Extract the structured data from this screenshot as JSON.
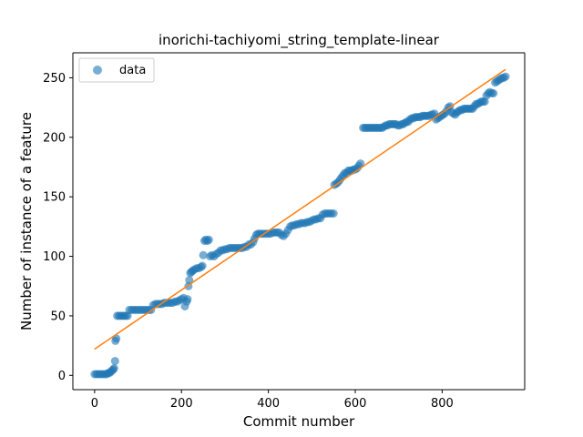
{
  "chart_data": {
    "type": "scatter",
    "title": "inorichi-tachiyomi_string_template-linear",
    "xlabel": "Commit number",
    "ylabel": "Number of instance of a feature",
    "xlim": [
      -50,
      990
    ],
    "ylim": [
      -12,
      271
    ],
    "x_ticks": [
      0,
      200,
      400,
      600,
      800
    ],
    "y_ticks": [
      0,
      50,
      100,
      150,
      200,
      250
    ],
    "grid": false,
    "legend_position": "top-left",
    "series": [
      {
        "name": "data",
        "kind": "scatter",
        "color": "#1f77b4",
        "opacity": 0.6,
        "points": [
          [
            0,
            1
          ],
          [
            4,
            1
          ],
          [
            8,
            1
          ],
          [
            12,
            1
          ],
          [
            16,
            1
          ],
          [
            20,
            1
          ],
          [
            24,
            1
          ],
          [
            28,
            1
          ],
          [
            31,
            2
          ],
          [
            34,
            2
          ],
          [
            37,
            3
          ],
          [
            40,
            4
          ],
          [
            43,
            5
          ],
          [
            45,
            6
          ],
          [
            47,
            12
          ],
          [
            48,
            29
          ],
          [
            50,
            31
          ],
          [
            52,
            50
          ],
          [
            56,
            50
          ],
          [
            60,
            50
          ],
          [
            64,
            50
          ],
          [
            68,
            50
          ],
          [
            72,
            50
          ],
          [
            76,
            50
          ],
          [
            80,
            55
          ],
          [
            85,
            55
          ],
          [
            90,
            55
          ],
          [
            95,
            55
          ],
          [
            100,
            55
          ],
          [
            105,
            55
          ],
          [
            110,
            55
          ],
          [
            115,
            55
          ],
          [
            120,
            55
          ],
          [
            125,
            55
          ],
          [
            130,
            55
          ],
          [
            135,
            59
          ],
          [
            140,
            60
          ],
          [
            145,
            60
          ],
          [
            150,
            60
          ],
          [
            155,
            60
          ],
          [
            160,
            61
          ],
          [
            165,
            61
          ],
          [
            170,
            61
          ],
          [
            175,
            61
          ],
          [
            180,
            61
          ],
          [
            185,
            62
          ],
          [
            190,
            62
          ],
          [
            195,
            63
          ],
          [
            200,
            64
          ],
          [
            205,
            65
          ],
          [
            208,
            58
          ],
          [
            212,
            62
          ],
          [
            214,
            64
          ],
          [
            216,
            75
          ],
          [
            218,
            80
          ],
          [
            220,
            86
          ],
          [
            223,
            87
          ],
          [
            226,
            88
          ],
          [
            230,
            89
          ],
          [
            235,
            90
          ],
          [
            240,
            90
          ],
          [
            245,
            91
          ],
          [
            248,
            92
          ],
          [
            250,
            101
          ],
          [
            253,
            113
          ],
          [
            256,
            114
          ],
          [
            260,
            113
          ],
          [
            263,
            114
          ],
          [
            266,
            100
          ],
          [
            270,
            101
          ],
          [
            275,
            100
          ],
          [
            280,
            102
          ],
          [
            285,
            103
          ],
          [
            290,
            105
          ],
          [
            295,
            105
          ],
          [
            300,
            106
          ],
          [
            305,
            106
          ],
          [
            310,
            107
          ],
          [
            315,
            107
          ],
          [
            320,
            107
          ],
          [
            325,
            107
          ],
          [
            330,
            107
          ],
          [
            335,
            107
          ],
          [
            340,
            107
          ],
          [
            345,
            108
          ],
          [
            350,
            108
          ],
          [
            355,
            110
          ],
          [
            360,
            110
          ],
          [
            365,
            112
          ],
          [
            368,
            115
          ],
          [
            372,
            118
          ],
          [
            376,
            119
          ],
          [
            380,
            119
          ],
          [
            385,
            119
          ],
          [
            390,
            119
          ],
          [
            395,
            119
          ],
          [
            400,
            119
          ],
          [
            405,
            119
          ],
          [
            410,
            120
          ],
          [
            415,
            120
          ],
          [
            420,
            120
          ],
          [
            425,
            120
          ],
          [
            430,
            118
          ],
          [
            435,
            117
          ],
          [
            440,
            119
          ],
          [
            445,
            122
          ],
          [
            450,
            125
          ],
          [
            455,
            126
          ],
          [
            460,
            126
          ],
          [
            465,
            127
          ],
          [
            470,
            127
          ],
          [
            475,
            128
          ],
          [
            480,
            128
          ],
          [
            485,
            128
          ],
          [
            490,
            129
          ],
          [
            495,
            129
          ],
          [
            500,
            130
          ],
          [
            505,
            131
          ],
          [
            510,
            131
          ],
          [
            515,
            132
          ],
          [
            520,
            132
          ],
          [
            525,
            135
          ],
          [
            530,
            136
          ],
          [
            535,
            136
          ],
          [
            540,
            136
          ],
          [
            545,
            136
          ],
          [
            550,
            136
          ],
          [
            552,
            160
          ],
          [
            556,
            161
          ],
          [
            560,
            162
          ],
          [
            564,
            164
          ],
          [
            568,
            166
          ],
          [
            572,
            168
          ],
          [
            576,
            170
          ],
          [
            580,
            170
          ],
          [
            584,
            172
          ],
          [
            588,
            172
          ],
          [
            592,
            172
          ],
          [
            596,
            173
          ],
          [
            600,
            173
          ],
          [
            604,
            174
          ],
          [
            608,
            176
          ],
          [
            612,
            178
          ],
          [
            618,
            208
          ],
          [
            622,
            208
          ],
          [
            626,
            208
          ],
          [
            630,
            208
          ],
          [
            634,
            208
          ],
          [
            638,
            208
          ],
          [
            642,
            208
          ],
          [
            646,
            208
          ],
          [
            650,
            208
          ],
          [
            654,
            208
          ],
          [
            658,
            208
          ],
          [
            662,
            208
          ],
          [
            666,
            209
          ],
          [
            670,
            210
          ],
          [
            674,
            210
          ],
          [
            678,
            211
          ],
          [
            682,
            211
          ],
          [
            686,
            211
          ],
          [
            690,
            211
          ],
          [
            694,
            211
          ],
          [
            698,
            210
          ],
          [
            702,
            210
          ],
          [
            706,
            211
          ],
          [
            710,
            211
          ],
          [
            714,
            212
          ],
          [
            718,
            213
          ],
          [
            722,
            213
          ],
          [
            726,
            215
          ],
          [
            730,
            216
          ],
          [
            734,
            216
          ],
          [
            738,
            217
          ],
          [
            742,
            217
          ],
          [
            746,
            217
          ],
          [
            750,
            217
          ],
          [
            754,
            218
          ],
          [
            758,
            218
          ],
          [
            762,
            218
          ],
          [
            766,
            218
          ],
          [
            770,
            218
          ],
          [
            774,
            219
          ],
          [
            778,
            219
          ],
          [
            782,
            220
          ],
          [
            786,
            215
          ],
          [
            790,
            216
          ],
          [
            794,
            217
          ],
          [
            798,
            218
          ],
          [
            802,
            219
          ],
          [
            806,
            220
          ],
          [
            810,
            222
          ],
          [
            814,
            225
          ],
          [
            818,
            226
          ],
          [
            822,
            221
          ],
          [
            826,
            220
          ],
          [
            830,
            219
          ],
          [
            834,
            221
          ],
          [
            838,
            222
          ],
          [
            842,
            223
          ],
          [
            846,
            223
          ],
          [
            850,
            224
          ],
          [
            854,
            224
          ],
          [
            858,
            224
          ],
          [
            862,
            224
          ],
          [
            866,
            224
          ],
          [
            870,
            224
          ],
          [
            874,
            226
          ],
          [
            878,
            228
          ],
          [
            882,
            228
          ],
          [
            886,
            229
          ],
          [
            890,
            230
          ],
          [
            894,
            230
          ],
          [
            898,
            230
          ],
          [
            902,
            235
          ],
          [
            906,
            237
          ],
          [
            910,
            238
          ],
          [
            914,
            237
          ],
          [
            918,
            237
          ],
          [
            922,
            246
          ],
          [
            926,
            247
          ],
          [
            930,
            248
          ],
          [
            934,
            249
          ],
          [
            938,
            250
          ],
          [
            942,
            250
          ],
          [
            946,
            251
          ]
        ]
      },
      {
        "name": "",
        "kind": "line",
        "color": "#ff7f0e",
        "x": [
          0,
          946
        ],
        "y": [
          22,
          257
        ]
      }
    ]
  }
}
